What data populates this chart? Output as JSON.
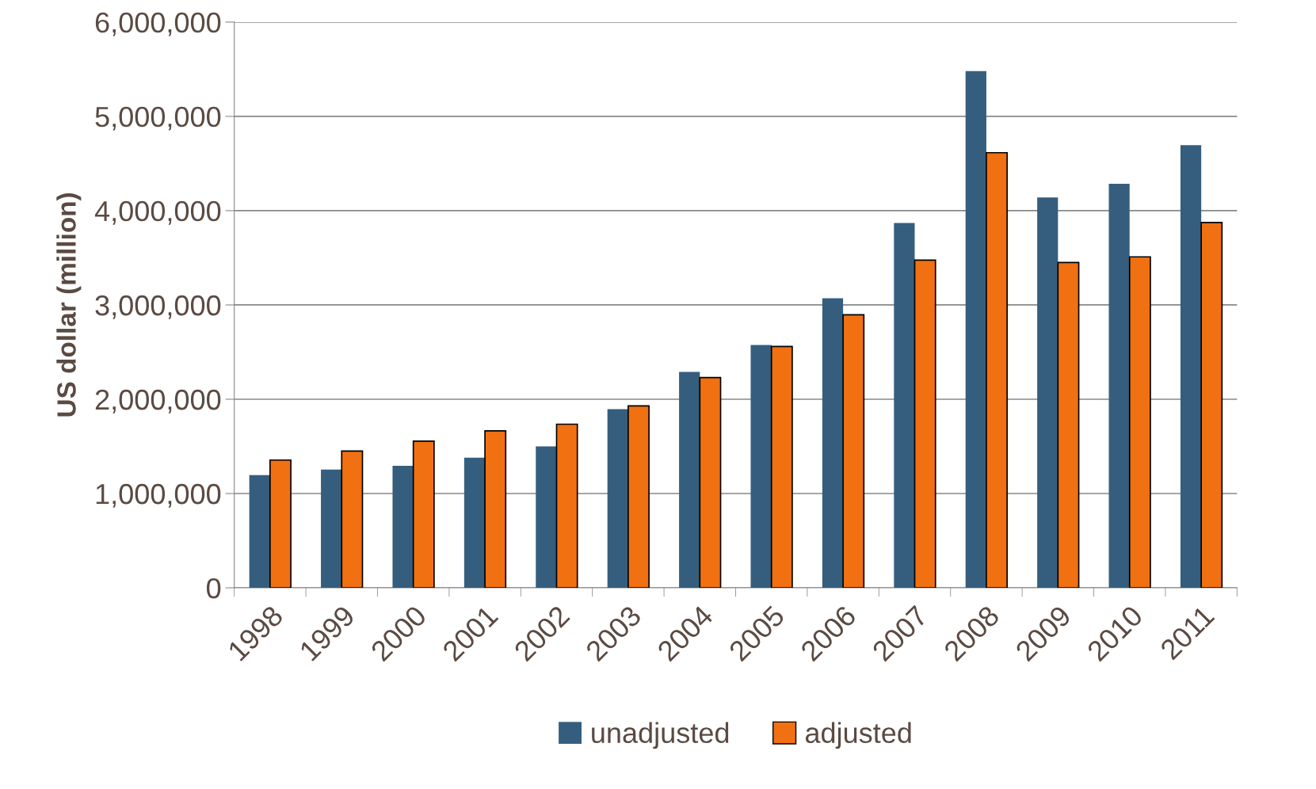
{
  "chart_data": {
    "type": "bar",
    "ylabel": "US dollar (million)",
    "categories": [
      "1998",
      "1999",
      "2000",
      "2001",
      "2002",
      "2003",
      "2004",
      "2005",
      "2006",
      "2007",
      "2008",
      "2009",
      "2010",
      "2011"
    ],
    "series": [
      {
        "name": "unadjusted",
        "color": "#355e7e",
        "values": [
          1195000,
          1255000,
          1295000,
          1380000,
          1500000,
          1895000,
          2290000,
          2575000,
          3070000,
          3870000,
          5480000,
          4140000,
          4285000,
          4695000
        ]
      },
      {
        "name": "adjusted",
        "color": "#f07012",
        "values": [
          1355000,
          1450000,
          1555000,
          1665000,
          1735000,
          1930000,
          2230000,
          2560000,
          2895000,
          3475000,
          4615000,
          3450000,
          3510000,
          3875000
        ]
      }
    ],
    "ylim": [
      0,
      6000000
    ],
    "yticks": [
      {
        "value": 0,
        "label": "0"
      },
      {
        "value": 1000000,
        "label": "1,000,000"
      },
      {
        "value": 2000000,
        "label": "2,000,000"
      },
      {
        "value": 3000000,
        "label": "3,000,000"
      },
      {
        "value": 4000000,
        "label": "4,000,000"
      },
      {
        "value": 5000000,
        "label": "5,000,000"
      },
      {
        "value": 6000000,
        "label": "6,000,000"
      }
    ],
    "grid": "y",
    "legend": "bottom"
  }
}
